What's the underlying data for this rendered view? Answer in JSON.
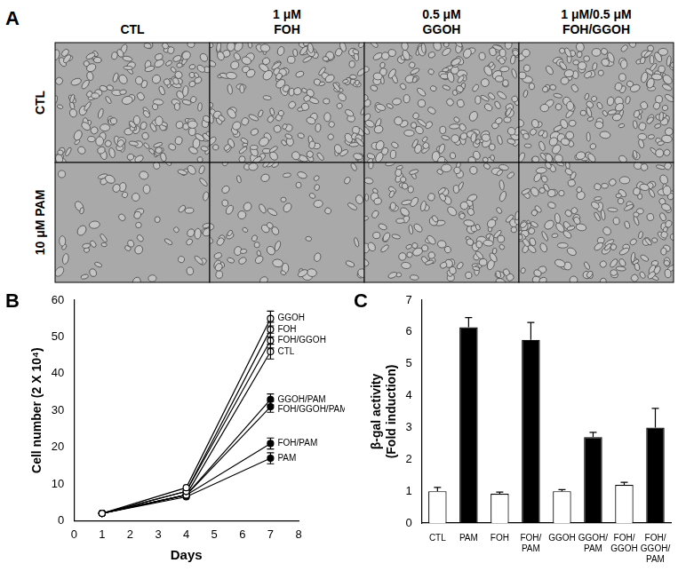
{
  "image_grid": {
    "panel_label": "A",
    "column_labels": [
      [
        "CTL"
      ],
      [
        "1 μM",
        "FOH"
      ],
      [
        "0.5 μM",
        "GGOH"
      ],
      [
        "1 μM/0.5 μM",
        "FOH/GGOH"
      ]
    ],
    "row_labels": [
      "CTL",
      "10 μM PAM"
    ]
  },
  "chart_data": [
    {
      "panel_label": "B",
      "type": "line",
      "x": [
        1,
        4,
        7
      ],
      "x_label": "Days",
      "y_label": "Cell number (2 X 10⁴)",
      "xlim": [
        0,
        8
      ],
      "xticks": [
        0,
        1,
        2,
        3,
        4,
        5,
        6,
        7,
        8
      ],
      "ylim": [
        0,
        60
      ],
      "yticks": [
        0,
        10,
        20,
        30,
        40,
        50,
        60
      ],
      "grid": false,
      "series": [
        {
          "name": "GGOH",
          "color": "#000000",
          "marker": "open_circle",
          "values": [
            2,
            9,
            55
          ],
          "errors": [
            null,
            null,
            2
          ]
        },
        {
          "name": "FOH",
          "color": "#000000",
          "marker": "open_circle",
          "values": [
            2,
            8,
            52
          ],
          "errors": [
            null,
            null,
            2
          ]
        },
        {
          "name": "FOH/GGOH",
          "color": "#000000",
          "marker": "open_circle",
          "values": [
            2,
            8,
            49
          ],
          "errors": [
            null,
            null,
            2
          ]
        },
        {
          "name": "CTL",
          "color": "#000000",
          "marker": "open_circle",
          "values": [
            2,
            7,
            46
          ],
          "errors": [
            null,
            null,
            2
          ]
        },
        {
          "name": "GGOH/PAM",
          "color": "#000000",
          "marker": "circle",
          "values": [
            2,
            7,
            33
          ],
          "errors": [
            null,
            null,
            1.5
          ]
        },
        {
          "name": "FOH/GGOH/PAM",
          "color": "#000000",
          "marker": "circle",
          "values": [
            2,
            7,
            31
          ],
          "errors": [
            null,
            null,
            1.5
          ]
        },
        {
          "name": "FOH/PAM",
          "color": "#000000",
          "marker": "circle",
          "values": [
            2,
            7,
            21
          ],
          "errors": [
            null,
            null,
            1.5
          ]
        },
        {
          "name": "PAM",
          "color": "#000000",
          "marker": "circle",
          "values": [
            2,
            6.5,
            17
          ],
          "errors": [
            null,
            null,
            1.5
          ]
        }
      ]
    },
    {
      "panel_label": "C",
      "type": "bar",
      "categories": [
        [
          "CTL"
        ],
        [
          "PAM"
        ],
        [
          "FOH"
        ],
        [
          "FOH/",
          "PAM"
        ],
        [
          "GGOH"
        ],
        [
          "GGOH/",
          "PAM"
        ],
        [
          "FOH/",
          "GGOH"
        ],
        [
          "FOH/",
          "GGOH/",
          "PAM"
        ]
      ],
      "values": [
        1.0,
        6.15,
        0.92,
        5.75,
        1.0,
        2.7,
        1.2,
        3.0
      ],
      "errors": [
        0.12,
        0.3,
        0.05,
        0.55,
        0.05,
        0.15,
        0.08,
        0.6
      ],
      "colors": [
        "#ffffff",
        "#000000",
        "#ffffff",
        "#000000",
        "#ffffff",
        "#000000",
        "#ffffff",
        "#000000"
      ],
      "y_label": [
        "β-gal activity",
        "(Fold induction)"
      ],
      "ylim": [
        0,
        7
      ],
      "yticks": [
        0,
        1,
        2,
        3,
        4,
        5,
        6,
        7
      ],
      "grid": false
    }
  ]
}
